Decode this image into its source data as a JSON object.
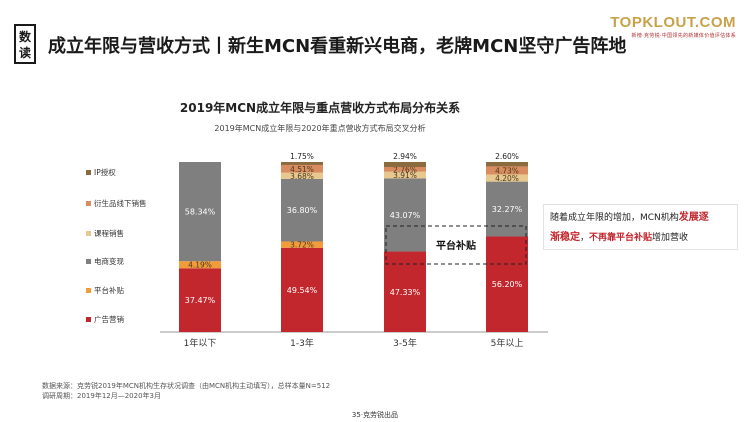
{
  "header": {
    "tag": "数读",
    "title": "成立年限与营收方式丨新生MCN看重新兴电商，老牌MCN坚守广告阵地"
  },
  "brand": {
    "name": "TOPKLOUT.COM",
    "sub": "新榜·克劳锐·中国领先的新媒体价值评估体系"
  },
  "chart_data": {
    "type": "bar",
    "stacked": true,
    "title": "2019年MCN成立年限与重点营收方式布局分布关系",
    "subtitle": "2019年MCN成立年限与2020年重点营收方式布局交叉分析",
    "categories": [
      "1年以下",
      "1-3年",
      "3-5年",
      "5年以上"
    ],
    "series": [
      {
        "name": "广告营销",
        "color": "#c1272d",
        "values": [
          37.47,
          49.54,
          47.33,
          56.2
        ]
      },
      {
        "name": "平台补贴",
        "color": "#f29b3a",
        "values": [
          4.19,
          3.72,
          0,
          0
        ]
      },
      {
        "name": "电商变现",
        "color": "#7f7f7f",
        "values": [
          58.34,
          36.8,
          43.07,
          32.27
        ]
      },
      {
        "name": "课程销售",
        "color": "#e8c88f",
        "values": [
          0,
          3.68,
          3.91,
          4.2
        ]
      },
      {
        "name": "衍生品线下销售",
        "color": "#d98c5f",
        "values": [
          0,
          4.51,
          2.76,
          4.73
        ]
      },
      {
        "name": "IP授权",
        "color": "#8b6a3e",
        "values": [
          0,
          1.75,
          2.94,
          2.6
        ]
      }
    ],
    "labels": [
      [
        "37.47%",
        "4.19%",
        "58.34%",
        "",
        "",
        ""
      ],
      [
        "49.54%",
        "3.72%",
        "36.80%",
        "3.68%",
        "4.51%",
        "1.75%"
      ],
      [
        "47.33%",
        "",
        "43.07%",
        "3.91%",
        "2.76%",
        "2.94%"
      ],
      [
        "56.20%",
        "",
        "32.27%",
        "4.20%",
        "4.73%",
        "2.60%"
      ]
    ],
    "ylim": [
      0,
      100
    ],
    "legend_position": "left",
    "annotation": "平台补贴"
  },
  "callout": {
    "text1": "随着成立年限的增加，MCN机构",
    "highlight1": "发展逐",
    "highlight2": "渐稳定",
    "comma": "，",
    "bold": "不再靠平台补贴",
    "text2": "增加营收"
  },
  "footer": {
    "source": "数据来源：克劳锐2019年MCN机构生存状况调查（由MCN机构主动填写），总样本量N=512",
    "period": "调研周期：2019年12月—2020年3月"
  },
  "page": "35·克劳锐出品"
}
